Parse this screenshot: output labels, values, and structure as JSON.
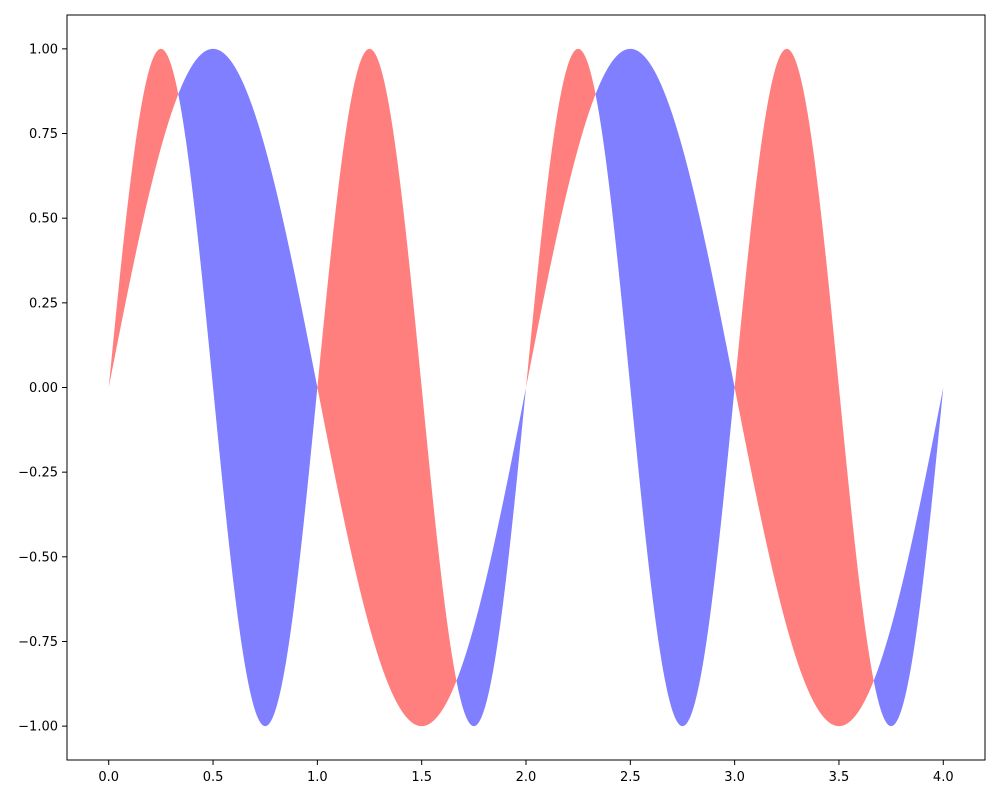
{
  "chart_data": {
    "type": "area",
    "title": "",
    "xlabel": "",
    "ylabel": "",
    "xlim": [
      -0.2,
      4.2
    ],
    "ylim": [
      -1.1,
      1.1
    ],
    "grid": false,
    "legend": "none",
    "x_ticks": [
      "0.0",
      "0.5",
      "1.0",
      "1.5",
      "2.0",
      "2.5",
      "3.0",
      "3.5",
      "4.0"
    ],
    "y_ticks": [
      "1.00",
      "0.75",
      "0.50",
      "0.25",
      "0.00",
      "−0.25",
      "−0.50",
      "−0.75",
      "−1.00"
    ],
    "x_range": [
      0,
      4
    ],
    "curves": {
      "y1": "sin(2*pi*x)",
      "y2": "sin(pi*x)"
    },
    "fill_between": [
      {
        "where": "y1 >= y2",
        "color": "#ff0000",
        "alpha": 0.5
      },
      {
        "where": "y1 <= y2",
        "color": "#0000ff",
        "alpha": 0.5
      }
    ]
  }
}
